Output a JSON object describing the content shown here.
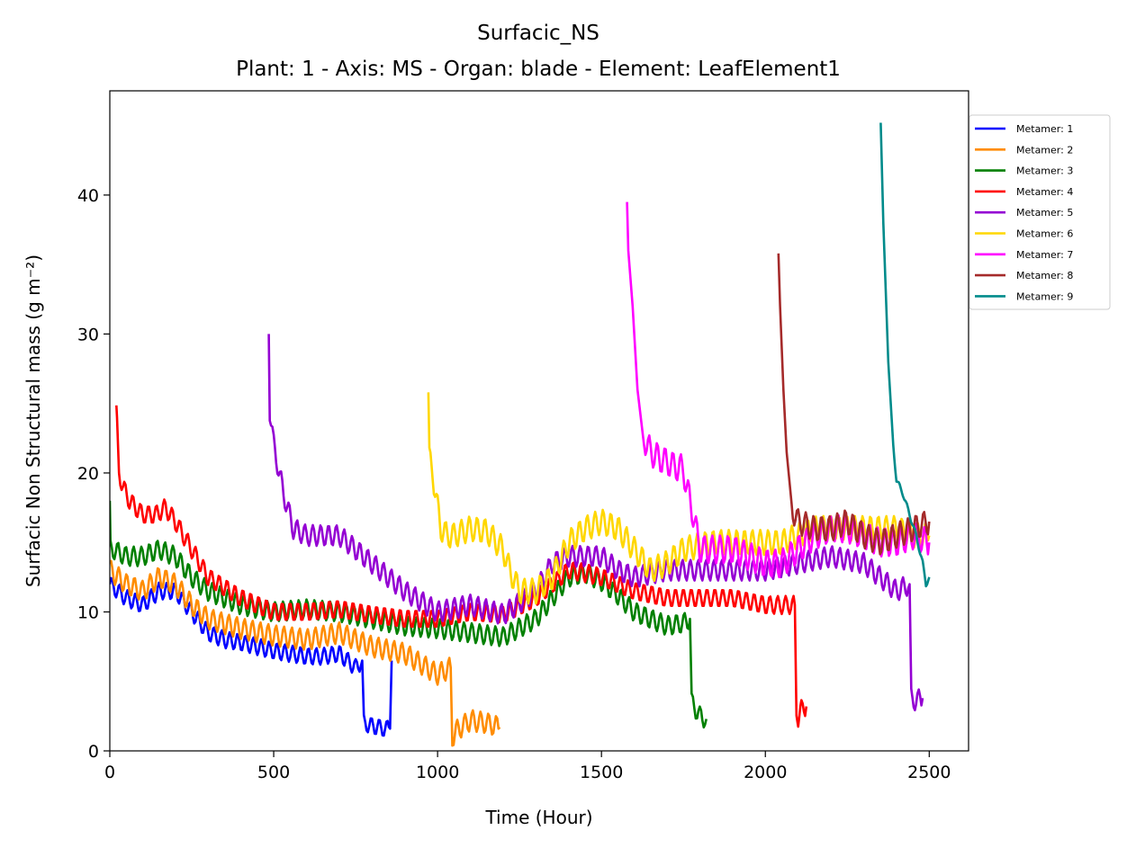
{
  "chart_data": {
    "type": "line",
    "title": "Surfacic_NS",
    "subtitle": "Plant: 1 - Axis: MS - Organ: blade - Element: LeafElement1",
    "xlabel": "Time (Hour)",
    "ylabel": "Surfacic Non Structural mass (g m⁻²)",
    "xlim": [
      0,
      2620
    ],
    "ylim": [
      0,
      47.5
    ],
    "xticks": [
      0,
      500,
      1000,
      1500,
      2000,
      2500
    ],
    "yticks": [
      0,
      10,
      20,
      30,
      40
    ],
    "grid": false,
    "legend_position": "outside-top-right",
    "series": [
      {
        "name": "Metamer: 1",
        "color": "#0000ff",
        "x": [
          0,
          50,
          100,
          150,
          200,
          250,
          300,
          350,
          400,
          450,
          500,
          550,
          600,
          650,
          700,
          750,
          770,
          775,
          800,
          840,
          855,
          860
        ],
        "y": [
          12,
          11,
          10.5,
          11.5,
          11.5,
          10,
          8.5,
          8,
          7.8,
          7.5,
          7.2,
          7,
          6.8,
          6.8,
          7,
          6,
          6.5,
          2,
          1.8,
          1.6,
          1.6,
          6.5
        ],
        "amp": 1.2
      },
      {
        "name": "Metamer: 2",
        "color": "#ff8c00",
        "x": [
          0,
          50,
          100,
          150,
          200,
          250,
          300,
          400,
          500,
          600,
          700,
          800,
          900,
          1000,
          1040,
          1045,
          1060,
          1100,
          1150,
          1190
        ],
        "y": [
          13,
          12,
          11.5,
          12.5,
          12,
          10.5,
          9.5,
          8.8,
          8.3,
          8,
          8.5,
          7.5,
          7,
          5.5,
          6,
          1,
          1.5,
          2.2,
          2,
          1.7
        ],
        "amp": 1.5
      },
      {
        "name": "Metamer: 3",
        "color": "#008000",
        "x": [
          0,
          2,
          10,
          50,
          100,
          150,
          200,
          250,
          300,
          400,
          500,
          600,
          700,
          800,
          900,
          1000,
          1100,
          1200,
          1300,
          1400,
          1450,
          1500,
          1550,
          1600,
          1650,
          1700,
          1750,
          1770,
          1775,
          1800,
          1820
        ],
        "y": [
          18,
          14.5,
          14.5,
          14,
          14,
          14.5,
          14,
          12.5,
          11.5,
          10.5,
          10,
          10.2,
          10,
          9.5,
          9,
          8.8,
          8.5,
          8.2,
          9.5,
          12.5,
          12.8,
          12.2,
          11.2,
          10,
          9.5,
          9,
          9.2,
          9.5,
          3.5,
          2.5,
          2.3
        ],
        "amp": 1.4
      },
      {
        "name": "Metamer: 4",
        "color": "#ff0000",
        "x": [
          20,
          22,
          28,
          40,
          60,
          100,
          140,
          170,
          200,
          250,
          300,
          400,
          500,
          600,
          700,
          800,
          900,
          1000,
          1100,
          1200,
          1300,
          1400,
          1450,
          1500,
          1600,
          1700,
          1800,
          1900,
          2000,
          2050,
          2090,
          2095,
          2100,
          2110,
          2125
        ],
        "y": [
          24.3,
          24,
          20,
          19,
          18,
          17,
          17,
          17.5,
          16.5,
          14.5,
          12.5,
          11,
          10,
          10,
          10.2,
          9.8,
          9.5,
          9.5,
          10,
          9.8,
          11,
          13,
          12.8,
          12.5,
          11.5,
          11,
          11,
          11,
          10.5,
          10.5,
          10.5,
          3,
          2.3,
          3,
          3.2
        ],
        "amp": 1.3
      },
      {
        "name": "Metamer: 5",
        "color": "#9400d3",
        "x": [
          485,
          488,
          500,
          530,
          560,
          600,
          650,
          700,
          750,
          800,
          900,
          1000,
          1100,
          1200,
          1300,
          1350,
          1400,
          1450,
          1500,
          1550,
          1600,
          1700,
          1800,
          1900,
          2000,
          2100,
          2200,
          2300,
          2400,
          2440,
          2445,
          2460,
          2480
        ],
        "y": [
          30,
          24.5,
          22,
          18.5,
          16,
          15.5,
          15.5,
          15.5,
          14.5,
          13.5,
          11.5,
          10,
          10.5,
          9.8,
          11.5,
          13.5,
          14,
          14,
          14,
          13,
          12.5,
          13,
          13,
          13,
          13,
          13.5,
          14,
          13.5,
          11.5,
          12,
          3.8,
          3.6,
          3.8
        ],
        "amp": 1.5
      },
      {
        "name": "Metamer: 6",
        "color": "#ffd700",
        "x": [
          972,
          975,
          985,
          1000,
          1010,
          1030,
          1050,
          1100,
          1150,
          1200,
          1220,
          1250,
          1300,
          1350,
          1400,
          1450,
          1500,
          1550,
          1600,
          1650,
          1700,
          1750,
          1800,
          1850,
          1900,
          1950,
          2000,
          2050,
          2100,
          2150,
          2200,
          2250,
          2300,
          2350,
          2400,
          2450,
          2500
        ],
        "y": [
          25.8,
          21,
          20,
          17.5,
          16,
          15.5,
          15.5,
          16,
          15.8,
          14.5,
          13,
          11.5,
          11.5,
          12.5,
          15,
          16,
          16.5,
          16,
          14.5,
          13,
          13.5,
          14.5,
          14.8,
          15,
          15,
          15,
          15,
          15,
          15.5,
          16,
          16,
          16,
          16,
          16,
          16,
          15.5,
          15.5
        ],
        "amp": 1.8
      },
      {
        "name": "Metamer: 7",
        "color": "#ff00ff",
        "x": [
          1578,
          1582,
          1595,
          1610,
          1630,
          1650,
          1680,
          1700,
          1720,
          1750,
          1760,
          1780,
          1800,
          1850,
          1900,
          1950,
          2000,
          2050,
          2100,
          2150,
          2200,
          2250,
          2300,
          2350,
          2400,
          2450,
          2500
        ],
        "y": [
          39.5,
          36,
          32,
          26,
          22.5,
          21.5,
          21,
          20.8,
          20.5,
          20.3,
          19,
          17,
          14.5,
          14.5,
          14.5,
          14,
          13.5,
          13.5,
          14.5,
          15.5,
          16,
          16,
          15.5,
          15,
          15,
          15.5,
          15
        ],
        "amp": 2.0
      },
      {
        "name": "Metamer: 8",
        "color": "#a52a2a",
        "x": [
          2040,
          2045,
          2055,
          2065,
          2080,
          2100,
          2150,
          2200,
          2250,
          2300,
          2350,
          2400,
          2450,
          2500
        ],
        "y": [
          35.8,
          32,
          26,
          21.5,
          17.5,
          16.5,
          16,
          16,
          16.5,
          15.5,
          15,
          15.5,
          16,
          16.5
        ],
        "amp": 1.8
      },
      {
        "name": "Metamer: 9",
        "color": "#008b8b",
        "x": [
          2352,
          2360,
          2375,
          2390,
          2400,
          2410,
          2420,
          2440,
          2460,
          2480,
          2490,
          2500
        ],
        "y": [
          45.2,
          38,
          28,
          22,
          19.5,
          19,
          18.5,
          17,
          15.5,
          13.5,
          12,
          12.5
        ],
        "amp": 0.4
      }
    ]
  }
}
